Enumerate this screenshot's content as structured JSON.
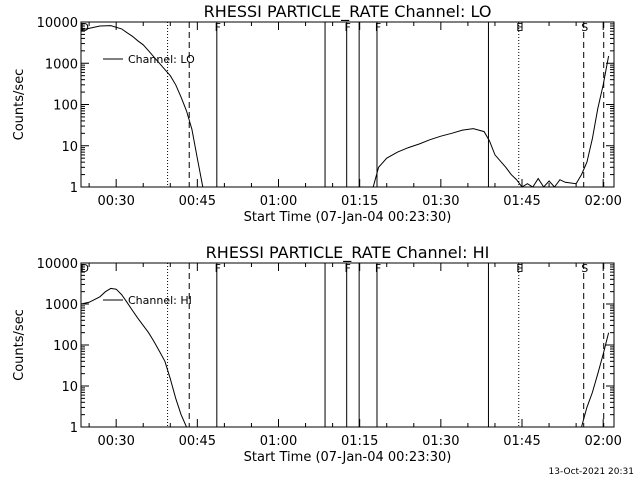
{
  "footer_date": "13-Oct-2021 20:31",
  "chart_data": [
    {
      "type": "line",
      "title": "RHESSI PARTICLE_RATE Channel: LO",
      "xlabel": "Start Time (07-Jan-04 00:23:30)",
      "ylabel": "Counts/sec",
      "yscale": "log",
      "xlim_minutes": [
        23.5,
        122
      ],
      "ylim": [
        1,
        10000
      ],
      "x_tick_labels": [
        "00:30",
        "00:45",
        "01:00",
        "01:15",
        "01:30",
        "01:45",
        "02:00"
      ],
      "x_tick_minutes": [
        30,
        45,
        60,
        75,
        90,
        105,
        120
      ],
      "y_tick_labels": [
        "1",
        "10",
        "100",
        "1000",
        "10000"
      ],
      "y_tick_values": [
        1,
        10,
        100,
        1000,
        10000
      ],
      "legend": "Channel: LO",
      "legend_position": "top-left",
      "markers": [
        {
          "label": "D",
          "minute": 24,
          "style": "none"
        },
        {
          "label": "",
          "minute": 39.5,
          "style": "dotted"
        },
        {
          "label": "",
          "minute": 43.5,
          "style": "dashed"
        },
        {
          "label": "F",
          "minute": 48.6,
          "style": "solid"
        },
        {
          "label": "",
          "minute": 68.6,
          "style": "solid"
        },
        {
          "label": "F",
          "minute": 72.6,
          "style": "solid"
        },
        {
          "label": "",
          "minute": 74.9,
          "style": "solid"
        },
        {
          "label": "F",
          "minute": 78.2,
          "style": "solid"
        },
        {
          "label": "",
          "minute": 98.8,
          "style": "solid"
        },
        {
          "label": "E",
          "minute": 104.4,
          "style": "dotted"
        },
        {
          "label": "S",
          "minute": 116.4,
          "style": "dashed"
        },
        {
          "label": "",
          "minute": 120.1,
          "style": "dashed"
        }
      ],
      "series": [
        {
          "x": [
            23.5,
            25,
            27,
            29,
            31,
            32,
            33,
            34,
            35,
            36,
            37,
            38,
            39,
            40,
            41,
            42,
            43,
            44,
            45,
            46,
            50,
            55,
            60,
            65,
            70,
            75,
            77.5,
            78.5,
            80,
            82,
            84,
            86,
            88,
            90,
            92,
            94,
            96,
            98,
            99,
            100,
            102,
            103,
            104,
            105,
            106,
            107,
            108,
            109,
            110,
            111,
            112,
            113,
            115,
            116,
            117,
            118,
            119,
            120,
            121
          ],
          "y": [
            6500,
            7000,
            8000,
            8200,
            6800,
            5500,
            4500,
            3500,
            2800,
            2000,
            1400,
            1000,
            700,
            500,
            300,
            150,
            70,
            25,
            5,
            1,
            null,
            null,
            null,
            null,
            null,
            null,
            1,
            3,
            5,
            7,
            9,
            11,
            14,
            17,
            20,
            24,
            26,
            22,
            13,
            6,
            3,
            2,
            1.5,
            1,
            1.2,
            1,
            1.6,
            1,
            1.4,
            1,
            1.5,
            1.3,
            1.2,
            2,
            4,
            15,
            80,
            300,
            1500
          ]
        }
      ]
    },
    {
      "type": "line",
      "title": "RHESSI PARTICLE_RATE Channel: HI",
      "xlabel": "Start Time (07-Jan-04 00:23:30)",
      "ylabel": "Counts/sec",
      "yscale": "log",
      "xlim_minutes": [
        23.5,
        122
      ],
      "ylim": [
        1,
        10000
      ],
      "x_tick_labels": [
        "00:30",
        "00:45",
        "01:00",
        "01:15",
        "01:30",
        "01:45",
        "02:00"
      ],
      "x_tick_minutes": [
        30,
        45,
        60,
        75,
        90,
        105,
        120
      ],
      "y_tick_labels": [
        "1",
        "10",
        "100",
        "1000",
        "10000"
      ],
      "y_tick_values": [
        1,
        10,
        100,
        1000,
        10000
      ],
      "legend": "Channel: HI",
      "legend_position": "top-left",
      "markers": [
        {
          "label": "D",
          "minute": 24,
          "style": "none"
        },
        {
          "label": "",
          "minute": 39.5,
          "style": "dotted"
        },
        {
          "label": "",
          "minute": 43.5,
          "style": "dashed"
        },
        {
          "label": "F",
          "minute": 48.6,
          "style": "solid"
        },
        {
          "label": "",
          "minute": 68.6,
          "style": "solid"
        },
        {
          "label": "F",
          "minute": 72.6,
          "style": "solid"
        },
        {
          "label": "",
          "minute": 74.9,
          "style": "solid"
        },
        {
          "label": "F",
          "minute": 78.2,
          "style": "solid"
        },
        {
          "label": "",
          "minute": 98.8,
          "style": "solid"
        },
        {
          "label": "E",
          "minute": 104.4,
          "style": "dotted"
        },
        {
          "label": "S",
          "minute": 116.4,
          "style": "dashed"
        },
        {
          "label": "",
          "minute": 120.1,
          "style": "dashed"
        }
      ],
      "series": [
        {
          "x": [
            23.5,
            25,
            27,
            28,
            29,
            30,
            31,
            32,
            33,
            34,
            35,
            36,
            37,
            38,
            39,
            40,
            41,
            42,
            43,
            50,
            70,
            100,
            116,
            117,
            118,
            119,
            120,
            121
          ],
          "y": [
            1000,
            1100,
            1500,
            2000,
            2400,
            2300,
            1700,
            1100,
            700,
            450,
            300,
            200,
            120,
            70,
            40,
            15,
            5,
            2,
            1,
            null,
            null,
            null,
            1,
            3,
            7,
            20,
            60,
            200
          ]
        }
      ]
    }
  ]
}
